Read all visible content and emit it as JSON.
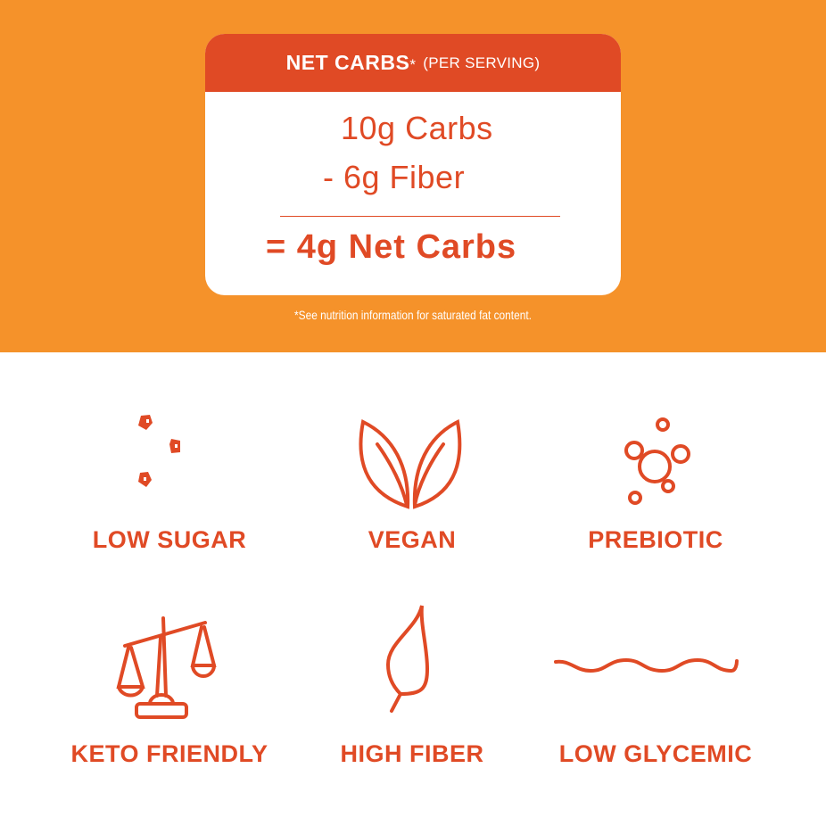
{
  "colors": {
    "orange": "#F5922A",
    "red": "#E04A25"
  },
  "card": {
    "header_bold": "NET CARBS",
    "header_asterisk": "*",
    "header_regular": "(PER SERVING)",
    "line1": "10g Carbs",
    "line2": "- 6g Fiber",
    "result": "= 4g Net Carbs"
  },
  "footnote": "*See nutrition information for saturated fat content.",
  "features": [
    {
      "label": "LOW SUGAR",
      "icon": "sugar-cubes-icon"
    },
    {
      "label": "VEGAN",
      "icon": "two-leaves-icon"
    },
    {
      "label": "PREBIOTIC",
      "icon": "molecule-icon"
    },
    {
      "label": "KETO FRIENDLY",
      "icon": "scale-icon"
    },
    {
      "label": "HIGH FIBER",
      "icon": "leaf-icon"
    },
    {
      "label": "LOW GLYCEMIC",
      "icon": "wave-icon"
    }
  ]
}
